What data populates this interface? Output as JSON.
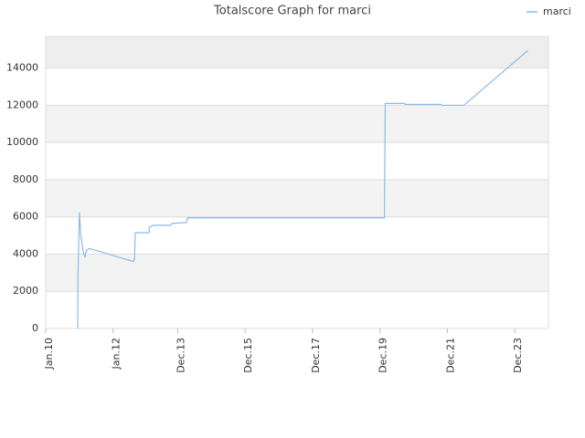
{
  "chart_data": {
    "type": "line",
    "title": "Totalscore Graph for marci",
    "x": [
      11.4,
      11.5,
      12.0,
      12.5,
      13.5,
      14.0,
      14.5,
      15.5,
      31.3,
      31.6,
      31.9,
      36.8,
      36.9,
      38.4,
      44.6,
      45.0,
      50.2,
      50.5,
      120.6,
      120.9,
      127.7,
      128.0,
      140.7,
      141.0,
      148.9,
      162.8,
      171.7
    ],
    "series": [
      {
        "name": "marci",
        "color": "#88bbee",
        "values": [
          0,
          2900,
          6250,
          5000,
          4000,
          3850,
          4200,
          4300,
          3600,
          3700,
          5150,
          5150,
          5450,
          5550,
          5550,
          5650,
          5700,
          5950,
          5950,
          12100,
          12100,
          12050,
          12050,
          12000,
          12000,
          13800,
          14950
        ]
      }
    ],
    "xlim": [
      0,
      179
    ],
    "xticks": [
      {
        "value": 0,
        "label": "Jan.10"
      },
      {
        "value": 24,
        "label": "Jan.12"
      },
      {
        "value": 47,
        "label": "Dec.13"
      },
      {
        "value": 71,
        "label": "Dec.15"
      },
      {
        "value": 95,
        "label": "Dec.17"
      },
      {
        "value": 119,
        "label": "Dec.19"
      },
      {
        "value": 143,
        "label": "Dec.21"
      },
      {
        "value": 167,
        "label": "Dec.23"
      }
    ],
    "ylim": [
      0,
      15700
    ],
    "yticks": [
      0,
      2000,
      4000,
      6000,
      8000,
      10000,
      12000,
      14000
    ],
    "grid": true,
    "legend": "top-right"
  }
}
